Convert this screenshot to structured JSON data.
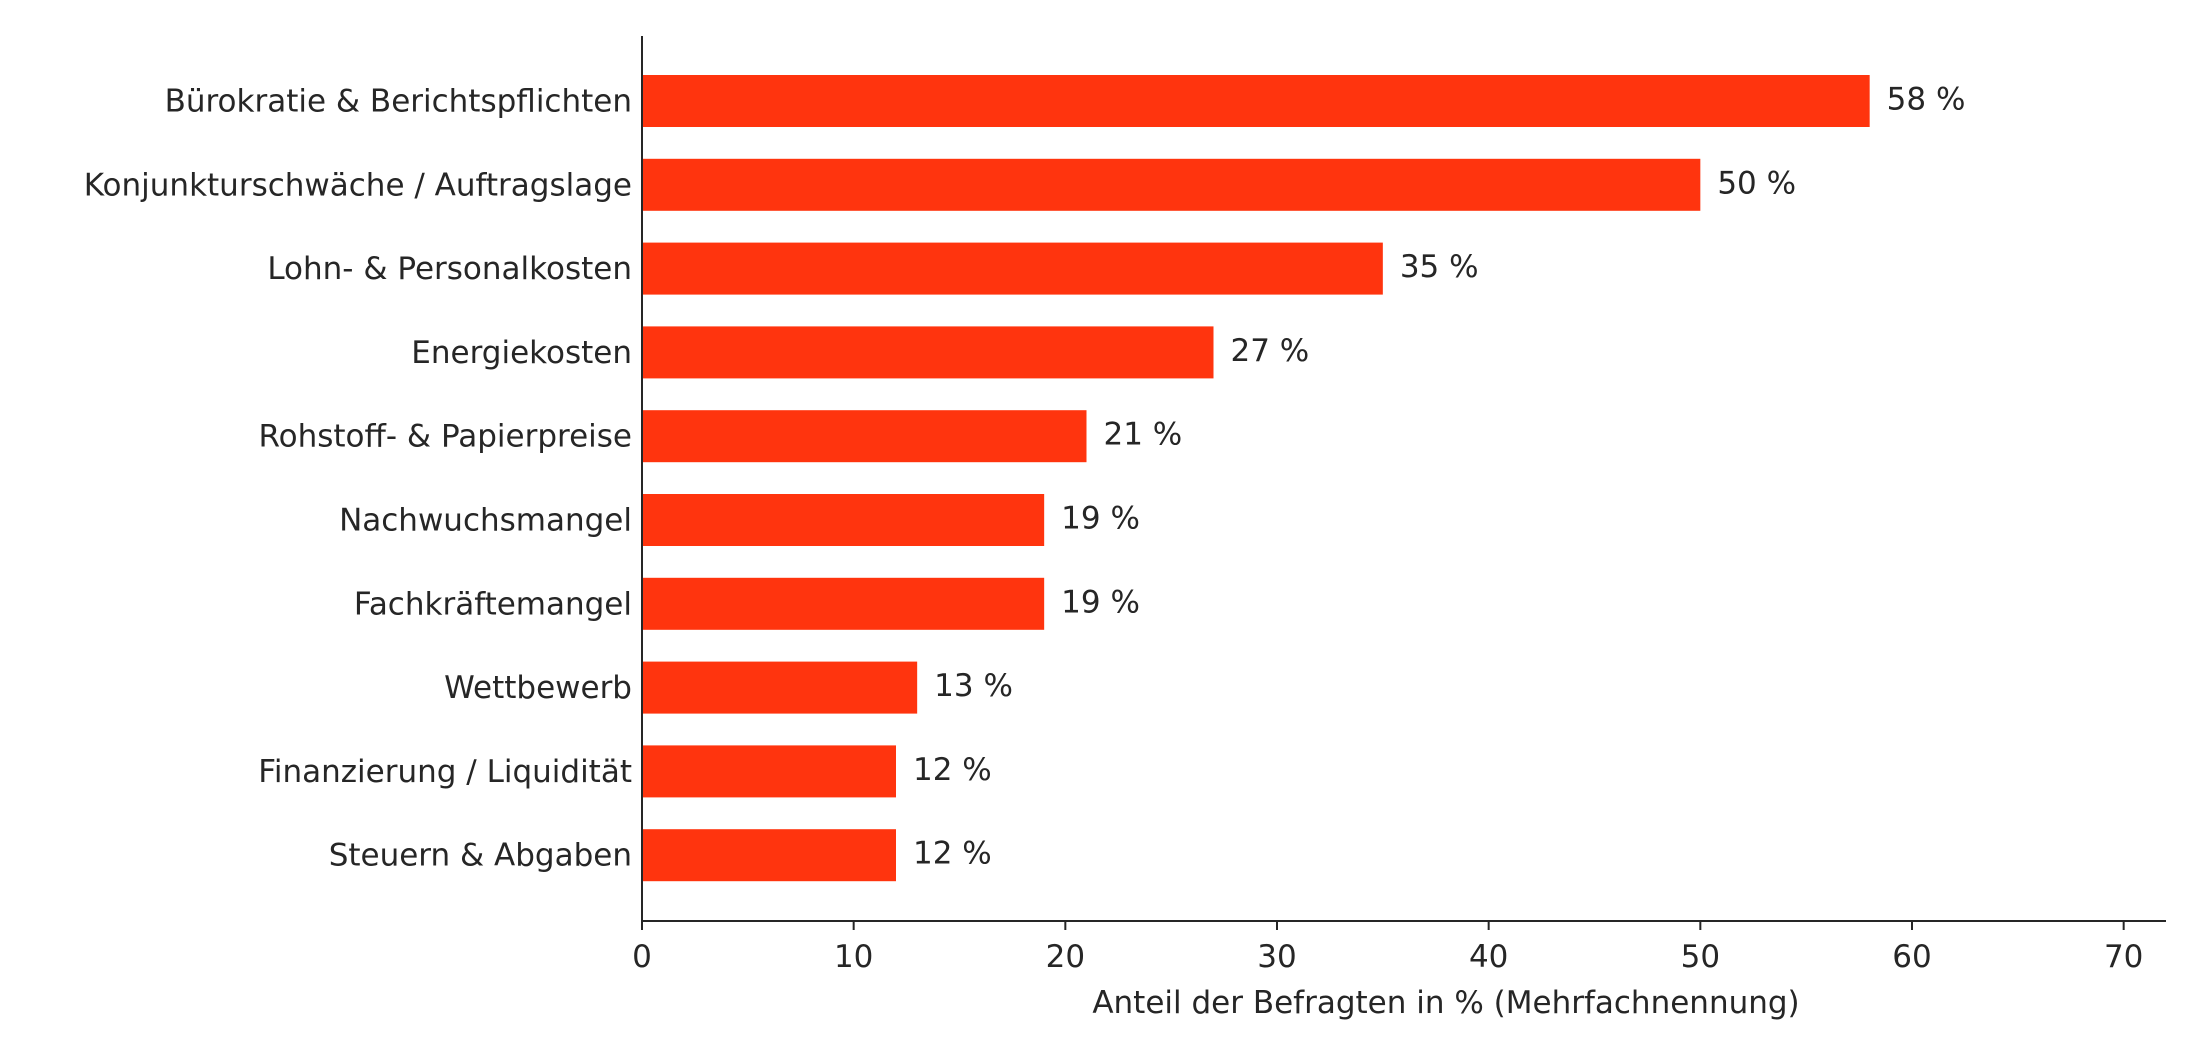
{
  "chart_data": {
    "type": "bar",
    "orientation": "horizontal",
    "categories": [
      "Bürokratie & Berichtspflichten",
      "Konjunkturschwäche / Auftragslage",
      "Lohn- & Personalkosten",
      "Energiekosten",
      "Rohstoff- & Papierpreise",
      "Nachwuchsmangel",
      "Fachkräftemangel",
      "Wettbewerb",
      "Finanzierung / Liquidität",
      "Steuern & Abgaben"
    ],
    "values": [
      58,
      50,
      35,
      27,
      21,
      19,
      19,
      13,
      12,
      12
    ],
    "value_labels": [
      "58 %",
      "50 %",
      "35 %",
      "27 %",
      "21 %",
      "19 %",
      "19 %",
      "13 %",
      "12 %",
      "12 %"
    ],
    "xlabel": "Anteil der Befragten in % (Mehrfachnennung)",
    "ylabel": "",
    "xlim": [
      0,
      72
    ],
    "xticks": [
      0,
      10,
      20,
      30,
      40,
      50,
      60,
      70
    ],
    "grid": false,
    "legend": "none",
    "bar_color": "#ff340e"
  }
}
